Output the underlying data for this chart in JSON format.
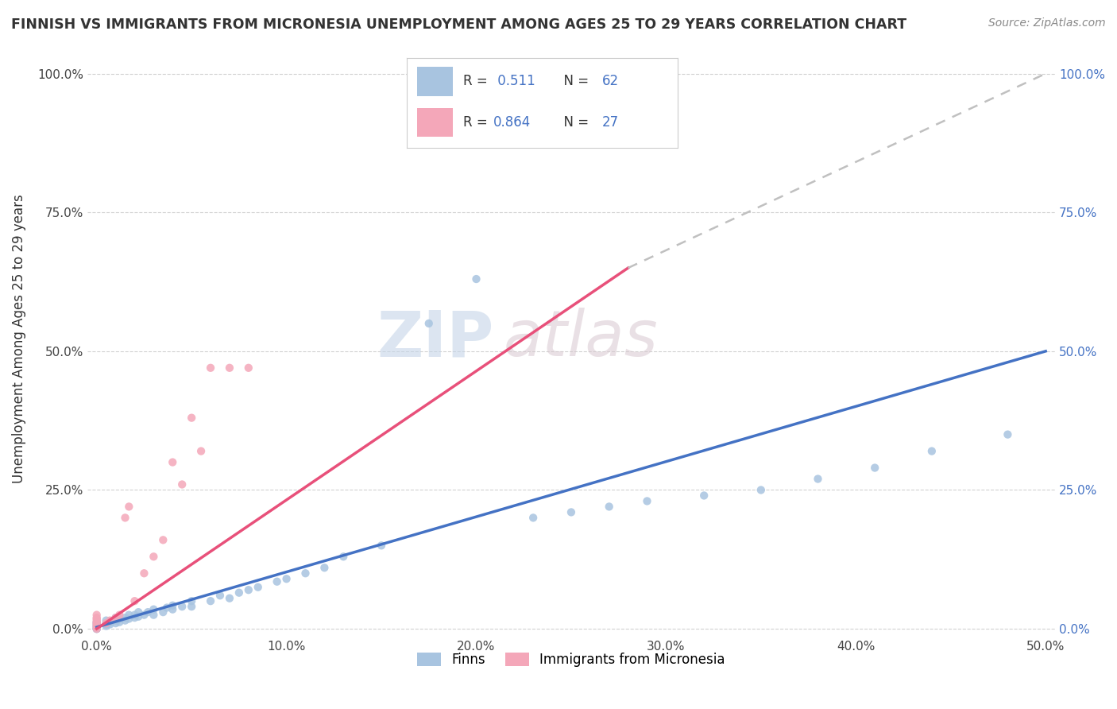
{
  "title": "FINNISH VS IMMIGRANTS FROM MICRONESIA UNEMPLOYMENT AMONG AGES 25 TO 29 YEARS CORRELATION CHART",
  "source": "Source: ZipAtlas.com",
  "ylabel": "Unemployment Among Ages 25 to 29 years",
  "xmin": 0.0,
  "xmax": 0.5,
  "ymin": 0.0,
  "ymax": 1.05,
  "xticks": [
    0.0,
    0.1,
    0.2,
    0.3,
    0.4,
    0.5
  ],
  "xtick_labels": [
    "0.0%",
    "10.0%",
    "20.0%",
    "30.0%",
    "40.0%",
    "50.0%"
  ],
  "ytick_labels": [
    "0.0%",
    "25.0%",
    "50.0%",
    "75.0%",
    "100.0%"
  ],
  "ytick_positions": [
    0.0,
    0.25,
    0.5,
    0.75,
    1.0
  ],
  "R_finns": 0.511,
  "N_finns": 62,
  "R_micro": 0.864,
  "N_micro": 27,
  "finns_color": "#a8c4e0",
  "micro_color": "#f4a7b9",
  "trendline_finns_color": "#4472c4",
  "trendline_micro_color": "#e8507a",
  "trendline_dashed_color": "#c0c0c0",
  "watermark_zip": "ZIP",
  "watermark_atlas": "atlas",
  "legend_label_finns": "Finns",
  "legend_label_micro": "Immigrants from Micronesia",
  "finns_x": [
    0.0,
    0.0,
    0.0,
    0.0,
    0.0,
    0.0,
    0.0,
    0.0,
    0.005,
    0.005,
    0.005,
    0.005,
    0.007,
    0.007,
    0.01,
    0.01,
    0.01,
    0.012,
    0.012,
    0.015,
    0.015,
    0.017,
    0.017,
    0.02,
    0.02,
    0.022,
    0.022,
    0.025,
    0.027,
    0.03,
    0.03,
    0.035,
    0.037,
    0.04,
    0.04,
    0.045,
    0.05,
    0.05,
    0.06,
    0.065,
    0.07,
    0.075,
    0.08,
    0.085,
    0.095,
    0.1,
    0.11,
    0.12,
    0.13,
    0.15,
    0.175,
    0.2,
    0.23,
    0.25,
    0.27,
    0.29,
    0.32,
    0.35,
    0.38,
    0.41,
    0.44,
    0.48
  ],
  "finns_y": [
    0.0,
    0.0,
    0.0,
    0.003,
    0.005,
    0.007,
    0.01,
    0.012,
    0.005,
    0.008,
    0.01,
    0.015,
    0.008,
    0.012,
    0.01,
    0.015,
    0.02,
    0.012,
    0.018,
    0.015,
    0.02,
    0.018,
    0.025,
    0.02,
    0.025,
    0.022,
    0.03,
    0.025,
    0.03,
    0.025,
    0.035,
    0.03,
    0.038,
    0.035,
    0.042,
    0.04,
    0.04,
    0.05,
    0.05,
    0.06,
    0.055,
    0.065,
    0.07,
    0.075,
    0.085,
    0.09,
    0.1,
    0.11,
    0.13,
    0.15,
    0.55,
    0.63,
    0.2,
    0.21,
    0.22,
    0.23,
    0.24,
    0.25,
    0.27,
    0.29,
    0.32,
    0.35
  ],
  "micro_x": [
    0.0,
    0.0,
    0.0,
    0.0,
    0.0,
    0.0,
    0.0,
    0.0,
    0.0,
    0.0,
    0.005,
    0.007,
    0.01,
    0.012,
    0.015,
    0.017,
    0.02,
    0.025,
    0.03,
    0.035,
    0.04,
    0.045,
    0.05,
    0.055,
    0.06,
    0.07,
    0.08
  ],
  "micro_y": [
    0.0,
    0.003,
    0.005,
    0.008,
    0.01,
    0.012,
    0.015,
    0.018,
    0.02,
    0.025,
    0.01,
    0.015,
    0.02,
    0.025,
    0.2,
    0.22,
    0.05,
    0.1,
    0.13,
    0.16,
    0.3,
    0.26,
    0.38,
    0.32,
    0.47,
    0.47,
    0.47
  ],
  "finns_trendline": [
    [
      0.0,
      0.003
    ],
    [
      0.5,
      0.5
    ]
  ],
  "micro_trendline_solid": [
    [
      0.0,
      0.0
    ],
    [
      0.28,
      0.65
    ]
  ],
  "micro_trendline_dash": [
    [
      0.28,
      0.65
    ],
    [
      0.5,
      1.0
    ]
  ]
}
